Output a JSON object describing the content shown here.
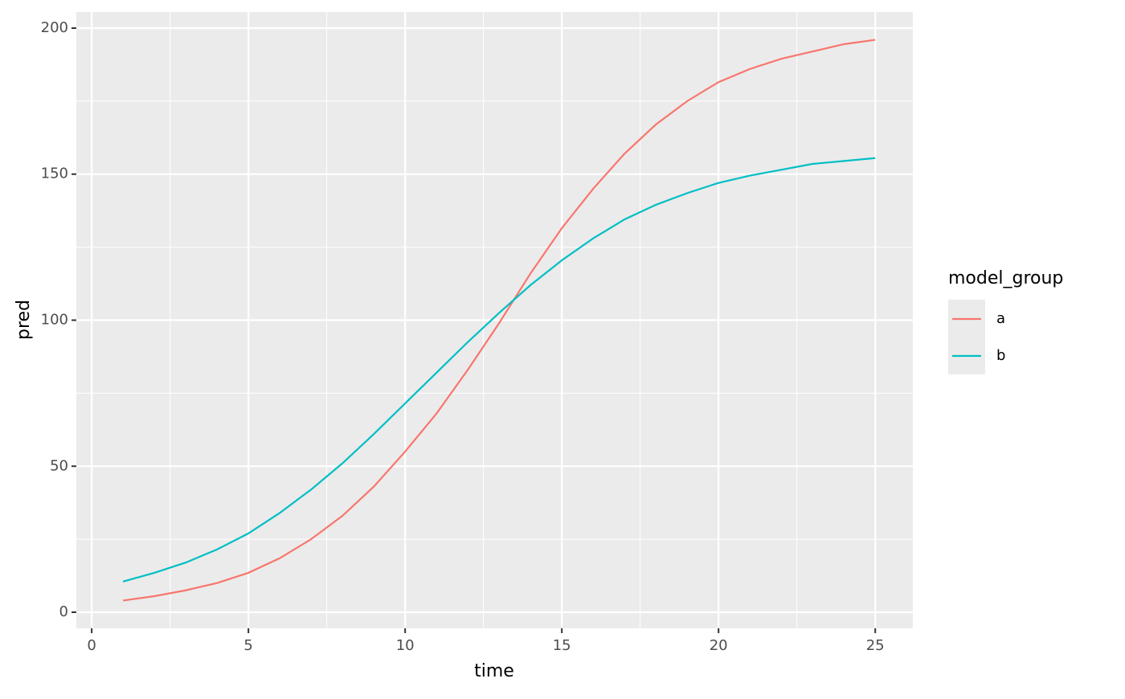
{
  "chart_data": {
    "type": "line",
    "x_label": "time",
    "y_label": "pred",
    "legend_title": "model_group",
    "x": [
      1,
      2,
      3,
      4,
      5,
      6,
      7,
      8,
      9,
      10,
      11,
      12,
      13,
      14,
      15,
      16,
      17,
      18,
      19,
      20,
      21,
      22,
      23,
      24,
      25
    ],
    "series": [
      {
        "name": "a",
        "color": "#F8766D",
        "values": [
          4,
          5.5,
          7.5,
          10,
          13.5,
          18.5,
          25,
          33,
          43,
          55,
          68,
          83,
          99,
          116,
          131.5,
          145,
          157,
          167,
          175,
          181.5,
          186,
          189.5,
          192,
          194.5,
          196
        ]
      },
      {
        "name": "b",
        "color": "#00BFC4",
        "values": [
          10.5,
          13.5,
          17,
          21.5,
          27,
          34,
          42,
          51,
          61,
          71.5,
          82,
          92.5,
          102.5,
          112,
          120.5,
          128,
          134.5,
          139.5,
          143.5,
          147,
          149.5,
          151.5,
          153.5,
          154.5,
          155.5
        ]
      }
    ],
    "xlim": [
      -0.49,
      26.2
    ],
    "xticks": [
      0,
      5,
      10,
      15,
      20,
      25
    ],
    "ylim": [
      -5.5,
      205.5
    ],
    "yticks": [
      0,
      50,
      100,
      150,
      200
    ],
    "grid": true,
    "legend": "right"
  }
}
